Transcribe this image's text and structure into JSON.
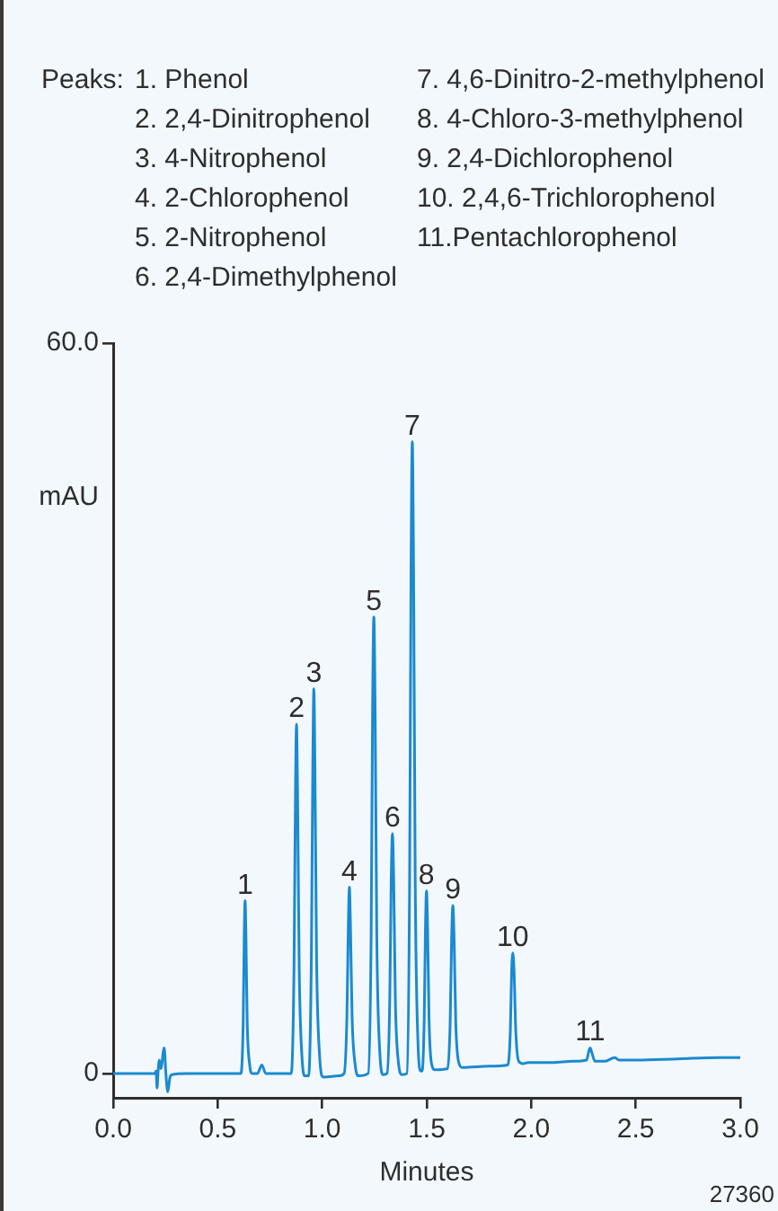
{
  "chart_data": {
    "type": "line",
    "xlabel": "Minutes",
    "ylabel": "mAU",
    "xlim": [
      0,
      3
    ],
    "xticks": [
      {
        "value": 0,
        "label": "0.0"
      },
      0.5,
      {
        "value": 1,
        "label": "1.0"
      },
      1.5,
      {
        "value": 2,
        "label": "2.0"
      },
      2.5,
      {
        "value": 3,
        "label": "3.0"
      }
    ],
    "ylim": [
      -2,
      60
    ],
    "yticks": [
      0,
      {
        "value": 60,
        "label": "60.0"
      }
    ],
    "color": "#1b8ad0",
    "marker": "none",
    "line_style": "solid",
    "x": [
      0,
      0.1,
      0.2,
      0.205,
      0.21,
      0.215,
      0.221,
      0.228,
      0.244,
      0.252,
      0.261,
      0.272,
      0.281,
      0.35,
      0.45,
      0.55,
      0.611,
      0.622,
      0.627,
      0.631,
      0.635,
      0.641,
      0.653,
      0.665,
      0.69,
      0.711,
      0.73,
      0.8,
      0.852,
      0.865,
      0.872,
      0.877,
      0.882,
      0.89,
      0.903,
      0.918,
      0.935,
      0.948,
      0.955,
      0.96,
      0.965,
      0.973,
      0.987,
      1.005,
      1.08,
      1.105,
      1.118,
      1.125,
      1.13,
      1.135,
      1.143,
      1.157,
      1.175,
      1.22,
      1.234,
      1.241,
      1.247,
      1.253,
      1.261,
      1.275,
      1.292,
      1.31,
      1.323,
      1.33,
      1.336,
      1.342,
      1.35,
      1.364,
      1.382,
      1.405,
      1.418,
      1.425,
      1.431,
      1.437,
      1.445,
      1.458,
      1.472,
      1.478,
      1.488,
      1.494,
      1.499,
      1.504,
      1.511,
      1.523,
      1.54,
      1.6,
      1.612,
      1.619,
      1.625,
      1.631,
      1.639,
      1.653,
      1.67,
      1.8,
      1.888,
      1.9,
      1.906,
      1.912,
      1.918,
      1.926,
      1.94,
      1.96,
      1.985,
      2.1,
      2.2,
      2.265,
      2.275,
      2.282,
      2.29,
      2.305,
      2.35,
      2.4,
      2.42,
      2.5,
      2.7,
      2.9,
      3
    ],
    "values": [
      0,
      0,
      0,
      0.2,
      -1.2,
      0.2,
      1.1,
      0.4,
      2.1,
      0,
      -1.5,
      -0.3,
      -0.1,
      0,
      0,
      0,
      0,
      4.3,
      11.4,
      14.2,
      11.4,
      4.3,
      0.7,
      0,
      0,
      0.7,
      0,
      0,
      0,
      8.6,
      23,
      28.7,
      23,
      8.6,
      1.4,
      -0.2,
      -0.2,
      9.5,
      25.3,
      31.6,
      25.3,
      9.5,
      1.6,
      -0.3,
      -0.2,
      0,
      4.6,
      12.2,
      15.3,
      12.2,
      4.6,
      0.8,
      -0.2,
      0,
      11.3,
      30,
      37.5,
      30,
      11.3,
      1.9,
      -0.1,
      0,
      5.9,
      15.8,
      19.7,
      15.8,
      5.9,
      1,
      -0.1,
      0,
      15.6,
      41.5,
      51.9,
      41.5,
      15.6,
      2.6,
      0.2,
      0.2,
      4.5,
      12,
      15,
      12,
      4.5,
      0.8,
      0.3,
      0.4,
      4.1,
      11,
      13.8,
      11,
      4.1,
      0.9,
      0.5,
      0.6,
      0.7,
      3.5,
      8.3,
      9.9,
      8.3,
      3.5,
      1,
      0.8,
      0.9,
      0.9,
      1,
      1.1,
      1.8,
      2.1,
      1.7,
      1,
      1,
      1.3,
      1.1,
      1.1,
      1.2,
      1.3,
      1.3
    ],
    "annotations": [
      "Peaks:",
      "1. Phenol",
      "2. 2,4-Dinitrophenol",
      "3. 4-Nitrophenol",
      "4. 2-Chlorophenol",
      "5. 2-Nitrophenol",
      "6. 2,4-Dimethylphenol",
      "7. 4,6-Dinitro-2-methylphenol",
      "8. 4-Chloro-3-methylphenol",
      "9. 2,4-Dichlorophenol",
      "10. 2,4,6-Trichlorophenol",
      "11.Pentachlorophenol",
      {
        "text": "1",
        "x": 0.631,
        "y": 14.2
      },
      {
        "text": "2",
        "x": 0.877,
        "y": 28.7
      },
      {
        "text": "3",
        "x": 0.96,
        "y": 31.6
      },
      {
        "text": "4",
        "x": 1.13,
        "y": 15.3
      },
      {
        "text": "5",
        "x": 1.247,
        "y": 37.5
      },
      {
        "text": "6",
        "x": 1.336,
        "y": 19.7
      },
      {
        "text": "7",
        "x": 1.431,
        "y": 51.9
      },
      {
        "text": "8",
        "x": 1.499,
        "y": 15
      },
      {
        "text": "9",
        "x": 1.625,
        "y": 13.8
      },
      {
        "text": "10",
        "x": 1.912,
        "y": 9.9
      },
      {
        "text": "11",
        "x": 2.282,
        "y": 2.1
      },
      "27360"
    ]
  }
}
